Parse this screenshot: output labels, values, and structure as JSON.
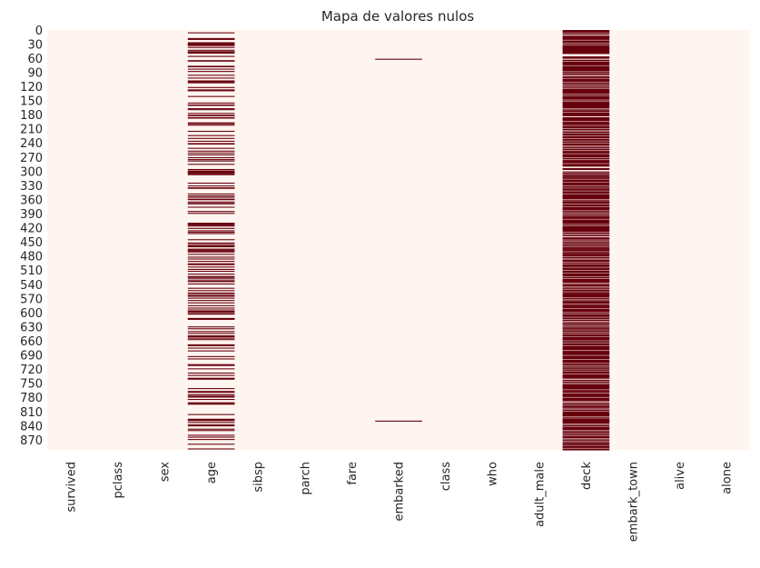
{
  "chart_data": {
    "type": "heatmap",
    "title": "Mapa de valores nulos",
    "columns": [
      "survived",
      "pclass",
      "sex",
      "age",
      "sibsp",
      "parch",
      "fare",
      "embarked",
      "class",
      "who",
      "adult_male",
      "deck",
      "embark_town",
      "alive",
      "alone"
    ],
    "n_rows": 891,
    "ytick_labels": [
      "0",
      "30",
      "60",
      "90",
      "120",
      "150",
      "180",
      "210",
      "240",
      "270",
      "300",
      "330",
      "360",
      "390",
      "420",
      "450",
      "480",
      "510",
      "540",
      "570",
      "600",
      "630",
      "660",
      "690",
      "720",
      "750",
      "780",
      "810",
      "840",
      "870"
    ],
    "ytick_step": 30,
    "colors": {
      "not_null": "#fff5f0",
      "null": "#67000d"
    },
    "colorbar": false,
    "null_intervals": {
      "age": [
        [
          5,
          6
        ],
        [
          17,
          18
        ],
        [
          19,
          20
        ],
        [
          26,
          27
        ],
        [
          28,
          30
        ],
        [
          29,
          30
        ],
        [
          31,
          32
        ],
        [
          32,
          33
        ],
        [
          36,
          37
        ],
        [
          42,
          43
        ],
        [
          45,
          46
        ],
        [
          46,
          47
        ],
        [
          47,
          48
        ],
        [
          48,
          49
        ],
        [
          55,
          56
        ],
        [
          64,
          65
        ],
        [
          65,
          66
        ],
        [
          76,
          77
        ],
        [
          77,
          78
        ],
        [
          82,
          83
        ],
        [
          87,
          88
        ],
        [
          95,
          96
        ],
        [
          101,
          102
        ],
        [
          107,
          108
        ],
        [
          109,
          110
        ],
        [
          111,
          112
        ],
        [
          121,
          122
        ],
        [
          126,
          127
        ],
        [
          128,
          129
        ],
        [
          140,
          141
        ],
        [
          154,
          155
        ],
        [
          158,
          159
        ],
        [
          159,
          160
        ],
        [
          166,
          167
        ],
        [
          168,
          169
        ],
        [
          176,
          177
        ],
        [
          180,
          181
        ],
        [
          181,
          182
        ],
        [
          185,
          186
        ],
        [
          186,
          187
        ],
        [
          196,
          197
        ],
        [
          198,
          199
        ],
        [
          201,
          202
        ],
        [
          214,
          215
        ],
        [
          223,
          224
        ],
        [
          229,
          230
        ],
        [
          235,
          236
        ],
        [
          240,
          241
        ],
        [
          241,
          242
        ],
        [
          250,
          251
        ],
        [
          256,
          257
        ],
        [
          260,
          261
        ],
        [
          264,
          265
        ],
        [
          270,
          271
        ],
        [
          274,
          275
        ],
        [
          277,
          278
        ],
        [
          284,
          285
        ],
        [
          295,
          296
        ],
        [
          298,
          299
        ],
        [
          300,
          301
        ],
        [
          301,
          302
        ],
        [
          303,
          304
        ],
        [
          304,
          305
        ],
        [
          306,
          307
        ],
        [
          324,
          325
        ],
        [
          330,
          331
        ],
        [
          334,
          335
        ],
        [
          335,
          336
        ],
        [
          347,
          348
        ],
        [
          351,
          352
        ],
        [
          354,
          355
        ],
        [
          358,
          359
        ],
        [
          359,
          360
        ],
        [
          364,
          365
        ],
        [
          367,
          368
        ],
        [
          368,
          369
        ],
        [
          375,
          376
        ],
        [
          384,
          385
        ],
        [
          388,
          389
        ],
        [
          409,
          410
        ],
        [
          410,
          411
        ],
        [
          411,
          412
        ],
        [
          413,
          414
        ],
        [
          415,
          416
        ],
        [
          420,
          421
        ],
        [
          425,
          426
        ],
        [
          428,
          429
        ],
        [
          431,
          432
        ],
        [
          444,
          445
        ],
        [
          451,
          452
        ],
        [
          454,
          455
        ],
        [
          457,
          458
        ],
        [
          459,
          460
        ],
        [
          464,
          465
        ],
        [
          466,
          467
        ],
        [
          468,
          469
        ],
        [
          470,
          471
        ],
        [
          475,
          476
        ],
        [
          481,
          482
        ],
        [
          485,
          486
        ],
        [
          490,
          491
        ],
        [
          495,
          496
        ],
        [
          497,
          498
        ],
        [
          502,
          503
        ],
        [
          507,
          508
        ],
        [
          511,
          512
        ],
        [
          517,
          518
        ],
        [
          522,
          523
        ],
        [
          524,
          525
        ],
        [
          527,
          528
        ],
        [
          531,
          532
        ],
        [
          533,
          534
        ],
        [
          538,
          539
        ],
        [
          547,
          548
        ],
        [
          552,
          553
        ],
        [
          557,
          558
        ],
        [
          560,
          561
        ],
        [
          563,
          564
        ],
        [
          564,
          565
        ],
        [
          568,
          569
        ],
        [
          573,
          574
        ],
        [
          578,
          579
        ],
        [
          584,
          585
        ],
        [
          589,
          590
        ],
        [
          593,
          594
        ],
        [
          596,
          597
        ],
        [
          598,
          599
        ],
        [
          601,
          602
        ],
        [
          602,
          603
        ],
        [
          611,
          612
        ],
        [
          612,
          613
        ],
        [
          613,
          614
        ],
        [
          629,
          630
        ],
        [
          633,
          634
        ],
        [
          639,
          640
        ],
        [
          643,
          644
        ],
        [
          648,
          649
        ],
        [
          650,
          651
        ],
        [
          653,
          654
        ],
        [
          656,
          657
        ],
        [
          667,
          668
        ],
        [
          669,
          670
        ],
        [
          674,
          675
        ],
        [
          680,
          681
        ],
        [
          692,
          693
        ],
        [
          697,
          698
        ],
        [
          709,
          710
        ],
        [
          711,
          712
        ],
        [
          718,
          719
        ],
        [
          727,
          728
        ],
        [
          732,
          733
        ],
        [
          738,
          739
        ],
        [
          739,
          740
        ],
        [
          740,
          741
        ],
        [
          760,
          761
        ],
        [
          766,
          767
        ],
        [
          768,
          769
        ],
        [
          773,
          774
        ],
        [
          776,
          777
        ],
        [
          778,
          779
        ],
        [
          783,
          784
        ],
        [
          790,
          791
        ],
        [
          792,
          793
        ],
        [
          793,
          794
        ],
        [
          815,
          816
        ],
        [
          825,
          826
        ],
        [
          826,
          827
        ],
        [
          828,
          829
        ],
        [
          832,
          833
        ],
        [
          837,
          838
        ],
        [
          839,
          840
        ],
        [
          846,
          847
        ],
        [
          849,
          850
        ],
        [
          859,
          860
        ],
        [
          863,
          864
        ],
        [
          868,
          869
        ],
        [
          878,
          879
        ],
        [
          888,
          889
        ]
      ],
      "deck": [
        [
          0,
          1
        ],
        [
          2,
          3
        ],
        [
          4,
          6
        ],
        [
          7,
          10
        ],
        [
          12,
          21
        ],
        [
          22,
          23
        ],
        [
          24,
          27
        ],
        [
          28,
          31
        ],
        [
          32,
          51
        ],
        [
          56,
          61
        ],
        [
          63,
          66
        ],
        [
          67,
          75
        ],
        [
          76,
          88
        ],
        [
          89,
          92
        ],
        [
          93,
          96
        ],
        [
          98,
          102
        ],
        [
          103,
          110
        ],
        [
          111,
          115
        ],
        [
          116,
          117
        ],
        [
          119,
          121
        ],
        [
          122,
          123
        ],
        [
          125,
          136
        ],
        [
          137,
          139
        ],
        [
          140,
          148
        ],
        [
          149,
          151
        ],
        [
          152,
          166
        ],
        [
          167,
          169
        ],
        [
          170,
          174
        ],
        [
          175,
          183
        ],
        [
          185,
          193
        ],
        [
          194,
          195
        ],
        [
          196,
          202
        ],
        [
          203,
          204
        ],
        [
          205,
          209
        ],
        [
          210,
          212
        ],
        [
          213,
          215
        ],
        [
          216,
          218
        ],
        [
          219,
          220
        ],
        [
          221,
          224
        ],
        [
          225,
          230
        ],
        [
          231,
          235
        ],
        [
          236,
          240
        ],
        [
          241,
          245
        ],
        [
          246,
          248
        ],
        [
          249,
          250
        ],
        [
          252,
          255
        ],
        [
          256,
          257
        ],
        [
          258,
          262
        ],
        [
          263,
          264
        ],
        [
          265,
          270
        ],
        [
          271,
          274
        ],
        [
          275,
          276
        ],
        [
          277,
          283
        ],
        [
          284,
          290
        ],
        [
          293,
          297
        ],
        [
          300,
          302
        ],
        [
          303,
          306
        ],
        [
          307,
          308
        ],
        [
          309,
          310
        ],
        [
          311,
          312
        ],
        [
          313,
          316
        ],
        [
          317,
          318
        ],
        [
          319,
          320
        ],
        [
          321,
          323
        ],
        [
          324,
          325
        ],
        [
          326,
          327
        ],
        [
          328,
          329
        ],
        [
          331,
          332
        ],
        [
          333,
          335
        ],
        [
          336,
          341
        ],
        [
          342,
          347
        ],
        [
          348,
          349
        ],
        [
          350,
          351
        ],
        [
          352,
          359
        ],
        [
          360,
          362
        ],
        [
          363,
          369
        ],
        [
          370,
          374
        ],
        [
          375,
          376
        ],
        [
          377,
          383
        ],
        [
          384,
          387
        ],
        [
          388,
          390
        ],
        [
          391,
          393
        ],
        [
          394,
          395
        ],
        [
          396,
          401
        ],
        [
          402,
          412
        ],
        [
          413,
          415
        ],
        [
          416,
          429
        ],
        [
          430,
          432
        ],
        [
          433,
          434
        ],
        [
          436,
          438
        ],
        [
          440,
          445
        ],
        [
          446,
          448
        ],
        [
          449,
          451
        ],
        [
          452,
          453
        ],
        [
          454,
          456
        ],
        [
          457,
          460
        ],
        [
          461,
          462
        ],
        [
          463,
          464
        ],
        [
          465,
          470
        ],
        [
          471,
          472
        ],
        [
          473,
          474
        ],
        [
          475,
          476
        ],
        [
          477,
          481
        ],
        [
          482,
          484
        ],
        [
          485,
          487
        ],
        [
          488,
          492
        ],
        [
          493,
          496
        ],
        [
          497,
          503
        ],
        [
          504,
          505
        ],
        [
          506,
          510
        ],
        [
          511,
          512
        ],
        [
          513,
          515
        ],
        [
          516,
          523
        ],
        [
          524,
          527
        ],
        [
          528,
          536
        ],
        [
          537,
          539
        ],
        [
          540,
          541
        ],
        [
          542,
          544
        ],
        [
          545,
          547
        ],
        [
          548,
          550
        ],
        [
          551,
          555
        ],
        [
          556,
          557
        ],
        [
          558,
          559
        ],
        [
          560,
          568
        ],
        [
          569,
          571
        ],
        [
          572,
          574
        ],
        [
          575,
          581
        ],
        [
          582,
          583
        ],
        [
          584,
          585
        ],
        [
          586,
          587
        ],
        [
          588,
          591
        ],
        [
          592,
          593
        ],
        [
          594,
          599
        ],
        [
          600,
          602
        ],
        [
          603,
          609
        ],
        [
          610,
          614
        ],
        [
          615,
          618
        ],
        [
          620,
          621
        ],
        [
          622,
          624
        ],
        [
          625,
          627
        ],
        [
          628,
          630
        ],
        [
          631,
          632
        ],
        [
          633,
          636
        ],
        [
          637,
          641
        ],
        [
          642,
          645
        ],
        [
          646,
          647
        ],
        [
          648,
          650
        ],
        [
          651,
          659
        ],
        [
          660,
          661
        ],
        [
          662,
          664
        ],
        [
          665,
          669
        ],
        [
          670,
          671
        ],
        [
          672,
          679
        ],
        [
          680,
          681
        ],
        [
          682,
          690
        ],
        [
          691,
          699
        ],
        [
          700,
          701
        ],
        [
          702,
          707
        ],
        [
          708,
          709
        ],
        [
          710,
          711
        ],
        [
          713,
          715
        ],
        [
          716,
          716
        ],
        [
          717,
          719
        ],
        [
          720,
          723
        ],
        [
          724,
          725
        ],
        [
          726,
          730
        ],
        [
          731,
          740
        ],
        [
          742,
          745
        ],
        [
          746,
          748
        ],
        [
          749,
          751
        ],
        [
          752,
          763
        ],
        [
          764,
          765
        ],
        [
          766,
          770
        ],
        [
          771,
          772
        ],
        [
          773,
          779
        ],
        [
          780,
          781
        ],
        [
          782,
          788
        ],
        [
          790,
          792
        ],
        [
          793,
          796
        ],
        [
          797,
          802
        ],
        [
          803,
          805
        ],
        [
          806,
          809
        ],
        [
          810,
          820
        ],
        [
          821,
          823
        ],
        [
          824,
          835
        ],
        [
          836,
          838
        ],
        [
          839,
          841
        ],
        [
          842,
          849
        ],
        [
          850,
          852
        ],
        [
          853,
          857
        ],
        [
          858,
          861
        ],
        [
          862,
          866
        ],
        [
          867,
          869
        ],
        [
          870,
          871
        ],
        [
          873,
          875
        ],
        [
          876,
          881
        ],
        [
          882,
          887
        ],
        [
          888,
          889
        ],
        [
          890,
          891
        ]
      ],
      "embarked": [
        [
          61,
          62
        ],
        [
          829,
          830
        ]
      ]
    }
  }
}
